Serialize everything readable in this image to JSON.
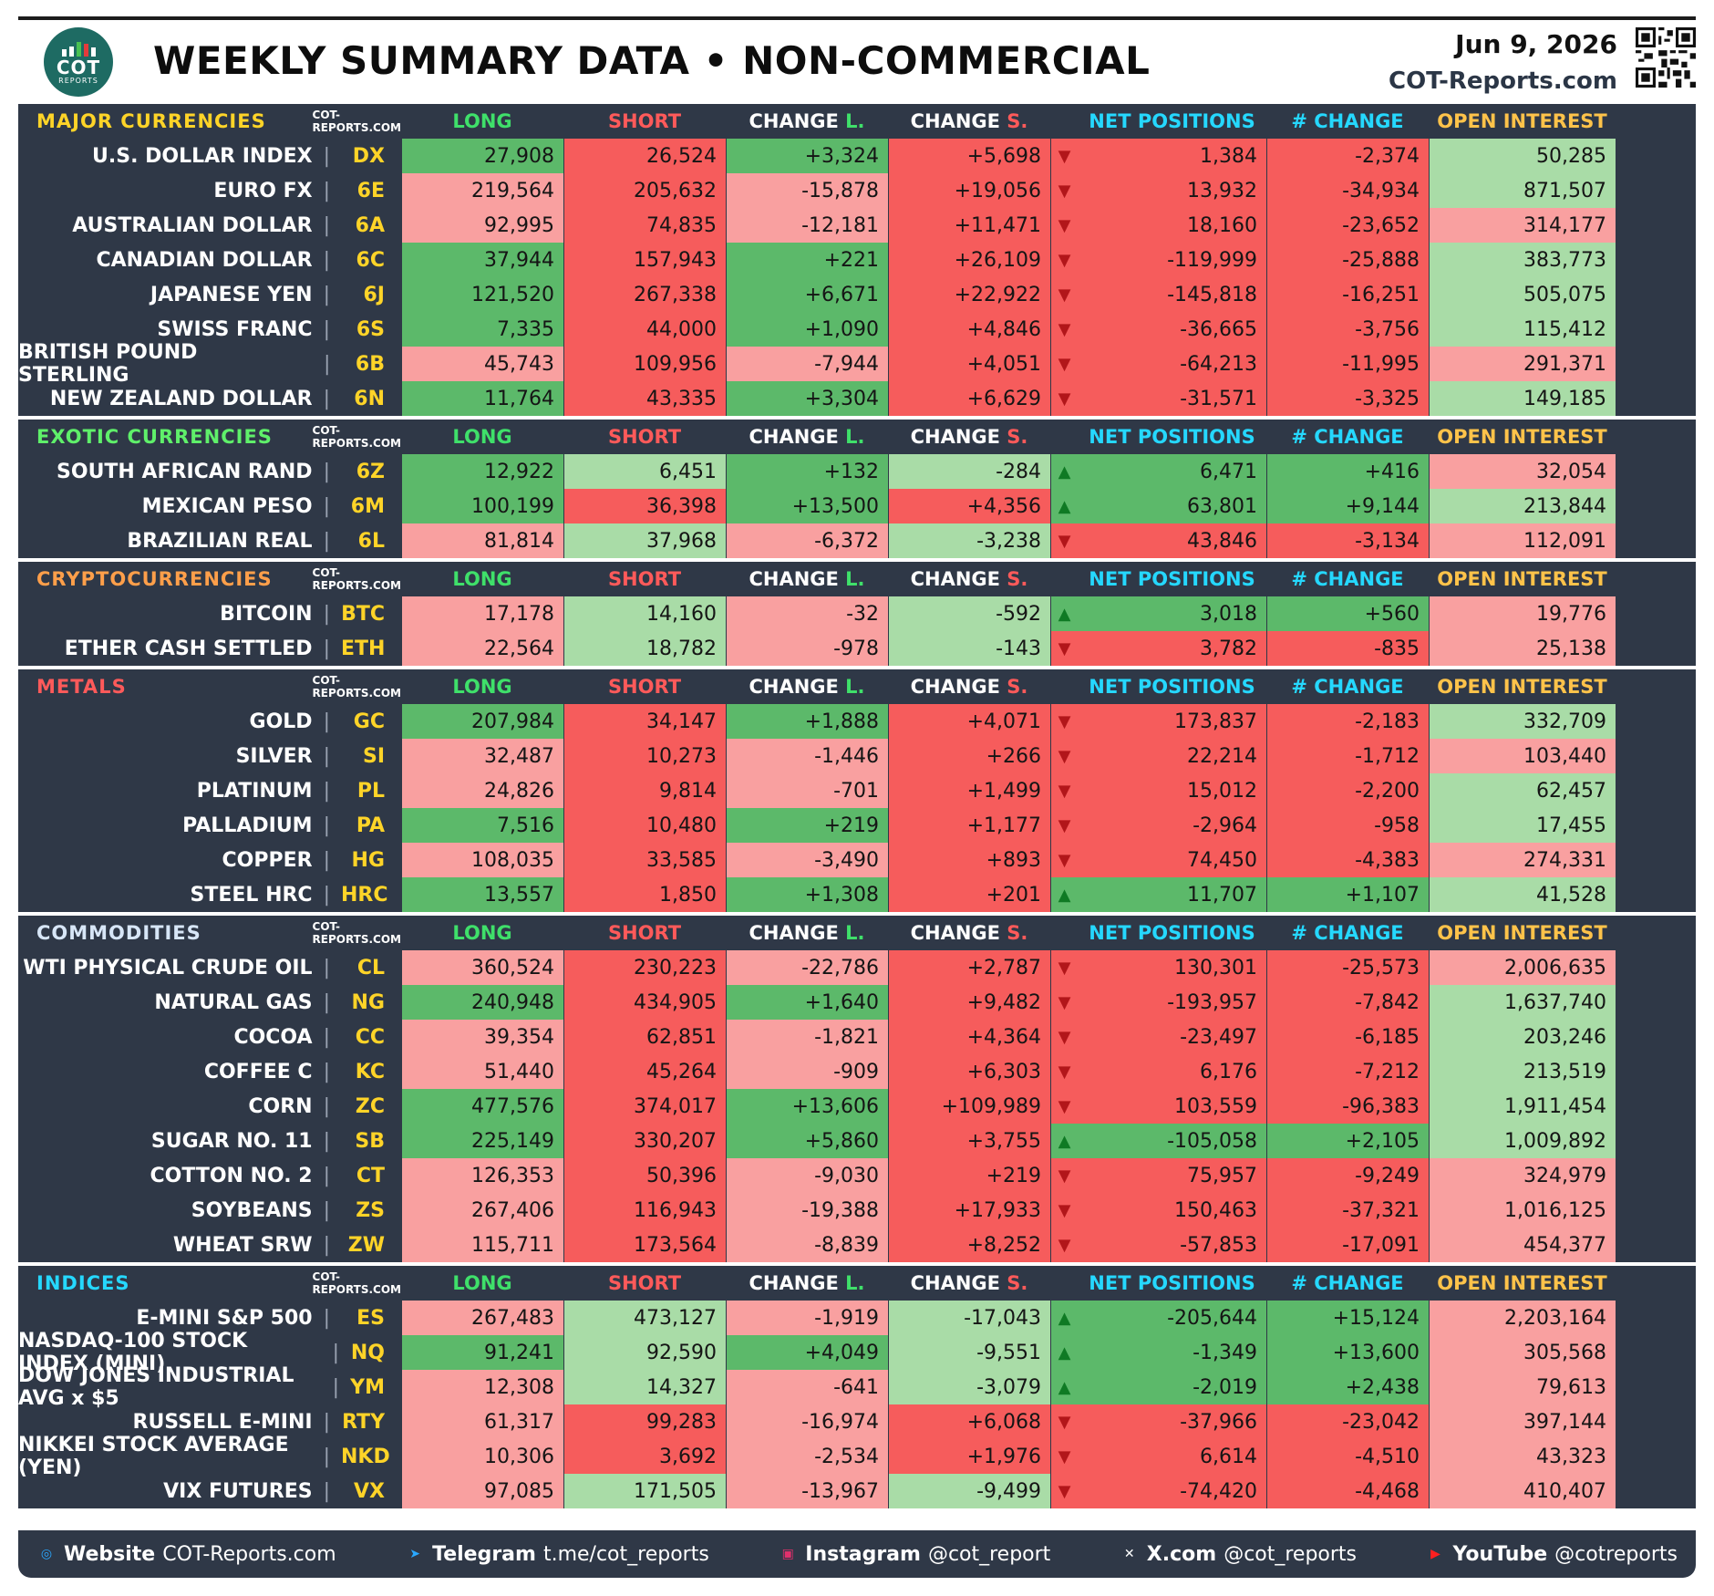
{
  "header": {
    "title": "WEEKLY SUMMARY DATA • NON-COMMERCIAL",
    "date": "Jun 9, 2026",
    "site": "COT-Reports.com",
    "logo_main": "COT",
    "logo_sub": "REPORTS"
  },
  "columns": [
    "LONG",
    "SHORT",
    "CHANGE L.",
    "CHANGE S.",
    "NET POSITIONS",
    "# CHANGE",
    "OPEN INTEREST"
  ],
  "source_label": "COT-REPORTS.COM",
  "colors": {
    "panel": "#2f3847",
    "strong_green": "#5cb96a",
    "pale_green": "#a9dca7",
    "pale_red": "#f9a0a0",
    "strong_red": "#f65c5c",
    "symbol": "#ffd428"
  },
  "sections": [
    {
      "title": "MAJOR CURRENCIES",
      "title_color": "#ffd428",
      "rows": [
        {
          "name": "U.S. DOLLAR INDEX",
          "sym": "DX",
          "long": "27,908",
          "short": "26,524",
          "chg_l": "+3,324",
          "chg_s": "+5,698",
          "dir": "down",
          "net": "1,384",
          "net_chg": "-2,374",
          "oi": "50,285",
          "c": [
            "lg",
            "sr",
            "lg",
            "sr",
            "sr",
            "sr",
            "pg"
          ]
        },
        {
          "name": "EURO FX",
          "sym": "6E",
          "long": "219,564",
          "short": "205,632",
          "chg_l": "-15,878",
          "chg_s": "+19,056",
          "dir": "down",
          "net": "13,932",
          "net_chg": "-34,934",
          "oi": "871,507",
          "c": [
            "pr",
            "sr",
            "pr",
            "sr",
            "sr",
            "sr",
            "pg"
          ]
        },
        {
          "name": "AUSTRALIAN DOLLAR",
          "sym": "6A",
          "long": "92,995",
          "short": "74,835",
          "chg_l": "-12,181",
          "chg_s": "+11,471",
          "dir": "down",
          "net": "18,160",
          "net_chg": "-23,652",
          "oi": "314,177",
          "c": [
            "pr",
            "sr",
            "pr",
            "sr",
            "sr",
            "sr",
            "pr"
          ]
        },
        {
          "name": "CANADIAN DOLLAR",
          "sym": "6C",
          "long": "37,944",
          "short": "157,943",
          "chg_l": "+221",
          "chg_s": "+26,109",
          "dir": "down",
          "net": "-119,999",
          "net_chg": "-25,888",
          "oi": "383,773",
          "c": [
            "lg",
            "sr",
            "lg",
            "sr",
            "sr",
            "sr",
            "pg"
          ]
        },
        {
          "name": "JAPANESE YEN",
          "sym": "6J",
          "long": "121,520",
          "short": "267,338",
          "chg_l": "+6,671",
          "chg_s": "+22,922",
          "dir": "down",
          "net": "-145,818",
          "net_chg": "-16,251",
          "oi": "505,075",
          "c": [
            "lg",
            "sr",
            "lg",
            "sr",
            "sr",
            "sr",
            "pg"
          ]
        },
        {
          "name": "SWISS FRANC",
          "sym": "6S",
          "long": "7,335",
          "short": "44,000",
          "chg_l": "+1,090",
          "chg_s": "+4,846",
          "dir": "down",
          "net": "-36,665",
          "net_chg": "-3,756",
          "oi": "115,412",
          "c": [
            "lg",
            "sr",
            "lg",
            "sr",
            "sr",
            "sr",
            "pg"
          ]
        },
        {
          "name": "BRITISH POUND STERLING",
          "sym": "6B",
          "long": "45,743",
          "short": "109,956",
          "chg_l": "-7,944",
          "chg_s": "+4,051",
          "dir": "down",
          "net": "-64,213",
          "net_chg": "-11,995",
          "oi": "291,371",
          "c": [
            "pr",
            "sr",
            "pr",
            "sr",
            "sr",
            "sr",
            "pr"
          ]
        },
        {
          "name": "NEW ZEALAND DOLLAR",
          "sym": "6N",
          "long": "11,764",
          "short": "43,335",
          "chg_l": "+3,304",
          "chg_s": "+6,629",
          "dir": "down",
          "net": "-31,571",
          "net_chg": "-3,325",
          "oi": "149,185",
          "c": [
            "lg",
            "sr",
            "lg",
            "sr",
            "sr",
            "sr",
            "pg"
          ]
        }
      ]
    },
    {
      "title": "EXOTIC CURRENCIES",
      "title_color": "#5ff06a",
      "rows": [
        {
          "name": "SOUTH AFRICAN RAND",
          "sym": "6Z",
          "long": "12,922",
          "short": "6,451",
          "chg_l": "+132",
          "chg_s": "-284",
          "dir": "up",
          "net": "6,471",
          "net_chg": "+416",
          "oi": "32,054",
          "c": [
            "lg",
            "pg",
            "lg",
            "pg",
            "lg",
            "lg",
            "pr"
          ]
        },
        {
          "name": "MEXICAN PESO",
          "sym": "6M",
          "long": "100,199",
          "short": "36,398",
          "chg_l": "+13,500",
          "chg_s": "+4,356",
          "dir": "up",
          "net": "63,801",
          "net_chg": "+9,144",
          "oi": "213,844",
          "c": [
            "lg",
            "sr",
            "lg",
            "sr",
            "lg",
            "lg",
            "pg"
          ]
        },
        {
          "name": "BRAZILIAN REAL",
          "sym": "6L",
          "long": "81,814",
          "short": "37,968",
          "chg_l": "-6,372",
          "chg_s": "-3,238",
          "dir": "down",
          "net": "43,846",
          "net_chg": "-3,134",
          "oi": "112,091",
          "c": [
            "pr",
            "pg",
            "pr",
            "pg",
            "sr",
            "sr",
            "pr"
          ]
        }
      ]
    },
    {
      "title": "CRYPTOCURRENCIES",
      "title_color": "#ff9f4a",
      "rows": [
        {
          "name": "BITCOIN",
          "sym": "BTC",
          "long": "17,178",
          "short": "14,160",
          "chg_l": "-32",
          "chg_s": "-592",
          "dir": "up",
          "net": "3,018",
          "net_chg": "+560",
          "oi": "19,776",
          "c": [
            "pr",
            "pg",
            "pr",
            "pg",
            "lg",
            "lg",
            "pr"
          ]
        },
        {
          "name": "ETHER CASH SETTLED",
          "sym": "ETH",
          "long": "22,564",
          "short": "18,782",
          "chg_l": "-978",
          "chg_s": "-143",
          "dir": "down",
          "net": "3,782",
          "net_chg": "-835",
          "oi": "25,138",
          "c": [
            "pr",
            "pg",
            "pr",
            "pg",
            "sr",
            "sr",
            "pr"
          ]
        }
      ]
    },
    {
      "title": "METALS",
      "title_color": "#ff5a5a",
      "rows": [
        {
          "name": "GOLD",
          "sym": "GC",
          "long": "207,984",
          "short": "34,147",
          "chg_l": "+1,888",
          "chg_s": "+4,071",
          "dir": "down",
          "net": "173,837",
          "net_chg": "-2,183",
          "oi": "332,709",
          "c": [
            "lg",
            "sr",
            "lg",
            "sr",
            "sr",
            "sr",
            "pg"
          ]
        },
        {
          "name": "SILVER",
          "sym": "SI",
          "long": "32,487",
          "short": "10,273",
          "chg_l": "-1,446",
          "chg_s": "+266",
          "dir": "down",
          "net": "22,214",
          "net_chg": "-1,712",
          "oi": "103,440",
          "c": [
            "pr",
            "sr",
            "pr",
            "sr",
            "sr",
            "sr",
            "pr"
          ]
        },
        {
          "name": "PLATINUM",
          "sym": "PL",
          "long": "24,826",
          "short": "9,814",
          "chg_l": "-701",
          "chg_s": "+1,499",
          "dir": "down",
          "net": "15,012",
          "net_chg": "-2,200",
          "oi": "62,457",
          "c": [
            "pr",
            "sr",
            "pr",
            "sr",
            "sr",
            "sr",
            "pg"
          ]
        },
        {
          "name": "PALLADIUM",
          "sym": "PA",
          "long": "7,516",
          "short": "10,480",
          "chg_l": "+219",
          "chg_s": "+1,177",
          "dir": "down",
          "net": "-2,964",
          "net_chg": "-958",
          "oi": "17,455",
          "c": [
            "lg",
            "sr",
            "lg",
            "sr",
            "sr",
            "sr",
            "pg"
          ]
        },
        {
          "name": "COPPER",
          "sym": "HG",
          "long": "108,035",
          "short": "33,585",
          "chg_l": "-3,490",
          "chg_s": "+893",
          "dir": "down",
          "net": "74,450",
          "net_chg": "-4,383",
          "oi": "274,331",
          "c": [
            "pr",
            "sr",
            "pr",
            "sr",
            "sr",
            "sr",
            "pr"
          ]
        },
        {
          "name": "STEEL HRC",
          "sym": "HRC",
          "long": "13,557",
          "short": "1,850",
          "chg_l": "+1,308",
          "chg_s": "+201",
          "dir": "up",
          "net": "11,707",
          "net_chg": "+1,107",
          "oi": "41,528",
          "c": [
            "lg",
            "sr",
            "lg",
            "sr",
            "lg",
            "lg",
            "pg"
          ]
        }
      ]
    },
    {
      "title": "COMMODITIES",
      "title_color": "#d7e6f7",
      "rows": [
        {
          "name": "WTI PHYSICAL CRUDE OIL",
          "sym": "CL",
          "long": "360,524",
          "short": "230,223",
          "chg_l": "-22,786",
          "chg_s": "+2,787",
          "dir": "down",
          "net": "130,301",
          "net_chg": "-25,573",
          "oi": "2,006,635",
          "c": [
            "pr",
            "sr",
            "pr",
            "sr",
            "sr",
            "sr",
            "pr"
          ]
        },
        {
          "name": "NATURAL GAS",
          "sym": "NG",
          "long": "240,948",
          "short": "434,905",
          "chg_l": "+1,640",
          "chg_s": "+9,482",
          "dir": "down",
          "net": "-193,957",
          "net_chg": "-7,842",
          "oi": "1,637,740",
          "c": [
            "lg",
            "sr",
            "lg",
            "sr",
            "sr",
            "sr",
            "pg"
          ]
        },
        {
          "name": "COCOA",
          "sym": "CC",
          "long": "39,354",
          "short": "62,851",
          "chg_l": "-1,821",
          "chg_s": "+4,364",
          "dir": "down",
          "net": "-23,497",
          "net_chg": "-6,185",
          "oi": "203,246",
          "c": [
            "pr",
            "sr",
            "pr",
            "sr",
            "sr",
            "sr",
            "pg"
          ]
        },
        {
          "name": "COFFEE C",
          "sym": "KC",
          "long": "51,440",
          "short": "45,264",
          "chg_l": "-909",
          "chg_s": "+6,303",
          "dir": "down",
          "net": "6,176",
          "net_chg": "-7,212",
          "oi": "213,519",
          "c": [
            "pr",
            "sr",
            "pr",
            "sr",
            "sr",
            "sr",
            "pg"
          ]
        },
        {
          "name": "CORN",
          "sym": "ZC",
          "long": "477,576",
          "short": "374,017",
          "chg_l": "+13,606",
          "chg_s": "+109,989",
          "dir": "down",
          "net": "103,559",
          "net_chg": "-96,383",
          "oi": "1,911,454",
          "c": [
            "lg",
            "sr",
            "lg",
            "sr",
            "sr",
            "sr",
            "pg"
          ]
        },
        {
          "name": "SUGAR NO. 11",
          "sym": "SB",
          "long": "225,149",
          "short": "330,207",
          "chg_l": "+5,860",
          "chg_s": "+3,755",
          "dir": "up",
          "net": "-105,058",
          "net_chg": "+2,105",
          "oi": "1,009,892",
          "c": [
            "lg",
            "sr",
            "lg",
            "sr",
            "lg",
            "lg",
            "pg"
          ]
        },
        {
          "name": "COTTON NO. 2",
          "sym": "CT",
          "long": "126,353",
          "short": "50,396",
          "chg_l": "-9,030",
          "chg_s": "+219",
          "dir": "down",
          "net": "75,957",
          "net_chg": "-9,249",
          "oi": "324,979",
          "c": [
            "pr",
            "sr",
            "pr",
            "sr",
            "sr",
            "sr",
            "pr"
          ]
        },
        {
          "name": "SOYBEANS",
          "sym": "ZS",
          "long": "267,406",
          "short": "116,943",
          "chg_l": "-19,388",
          "chg_s": "+17,933",
          "dir": "down",
          "net": "150,463",
          "net_chg": "-37,321",
          "oi": "1,016,125",
          "c": [
            "pr",
            "sr",
            "pr",
            "sr",
            "sr",
            "sr",
            "pr"
          ]
        },
        {
          "name": "WHEAT SRW",
          "sym": "ZW",
          "long": "115,711",
          "short": "173,564",
          "chg_l": "-8,839",
          "chg_s": "+8,252",
          "dir": "down",
          "net": "-57,853",
          "net_chg": "-17,091",
          "oi": "454,377",
          "c": [
            "pr",
            "sr",
            "pr",
            "sr",
            "sr",
            "sr",
            "pr"
          ]
        }
      ]
    },
    {
      "title": "INDICES",
      "title_color": "#25d8ff",
      "rows": [
        {
          "name": "E-MINI S&P 500",
          "sym": "ES",
          "long": "267,483",
          "short": "473,127",
          "chg_l": "-1,919",
          "chg_s": "-17,043",
          "dir": "up",
          "net": "-205,644",
          "net_chg": "+15,124",
          "oi": "2,203,164",
          "c": [
            "pr",
            "pg",
            "pr",
            "pg",
            "lg",
            "lg",
            "pr"
          ]
        },
        {
          "name": "NASDAQ-100 STOCK INDEX (MINI)",
          "sym": "NQ",
          "long": "91,241",
          "short": "92,590",
          "chg_l": "+4,049",
          "chg_s": "-9,551",
          "dir": "up",
          "net": "-1,349",
          "net_chg": "+13,600",
          "oi": "305,568",
          "c": [
            "lg",
            "pg",
            "lg",
            "pg",
            "lg",
            "lg",
            "pr"
          ]
        },
        {
          "name": "DOW JONES INDUSTRIAL AVG x $5",
          "sym": "YM",
          "long": "12,308",
          "short": "14,327",
          "chg_l": "-641",
          "chg_s": "-3,079",
          "dir": "up",
          "net": "-2,019",
          "net_chg": "+2,438",
          "oi": "79,613",
          "c": [
            "pr",
            "pg",
            "pr",
            "pg",
            "lg",
            "lg",
            "pr"
          ]
        },
        {
          "name": "RUSSELL E-MINI",
          "sym": "RTY",
          "long": "61,317",
          "short": "99,283",
          "chg_l": "-16,974",
          "chg_s": "+6,068",
          "dir": "down",
          "net": "-37,966",
          "net_chg": "-23,042",
          "oi": "397,144",
          "c": [
            "pr",
            "sr",
            "pr",
            "sr",
            "sr",
            "sr",
            "pr"
          ]
        },
        {
          "name": "NIKKEI STOCK AVERAGE (YEN)",
          "sym": "NKD",
          "long": "10,306",
          "short": "3,692",
          "chg_l": "-2,534",
          "chg_s": "+1,976",
          "dir": "down",
          "net": "6,614",
          "net_chg": "-4,510",
          "oi": "43,323",
          "c": [
            "pr",
            "sr",
            "pr",
            "sr",
            "sr",
            "sr",
            "pr"
          ]
        },
        {
          "name": "VIX FUTURES",
          "sym": "VX",
          "long": "97,085",
          "short": "171,505",
          "chg_l": "-13,967",
          "chg_s": "-9,499",
          "dir": "down",
          "net": "-74,420",
          "net_chg": "-4,468",
          "oi": "410,407",
          "c": [
            "pr",
            "pg",
            "pr",
            "pg",
            "sr",
            "sr",
            "pr"
          ]
        }
      ]
    }
  ],
  "footer": [
    {
      "label": "Website",
      "value": "COT-Reports.com",
      "icon": "globe-icon",
      "icon_color": "#2aa8ff"
    },
    {
      "label": "Telegram",
      "value": "t.me/cot_reports",
      "icon": "telegram-icon",
      "icon_color": "#2aa8ff"
    },
    {
      "label": "Instagram",
      "value": "@cot_report",
      "icon": "instagram-icon",
      "icon_color": "#e1306c"
    },
    {
      "label": "X.com",
      "value": "@cot_reports",
      "icon": "x-icon",
      "icon_color": "#ffffff"
    },
    {
      "label": "YouTube",
      "value": "@cotreports",
      "icon": "youtube-icon",
      "icon_color": "#ff2020"
    }
  ]
}
